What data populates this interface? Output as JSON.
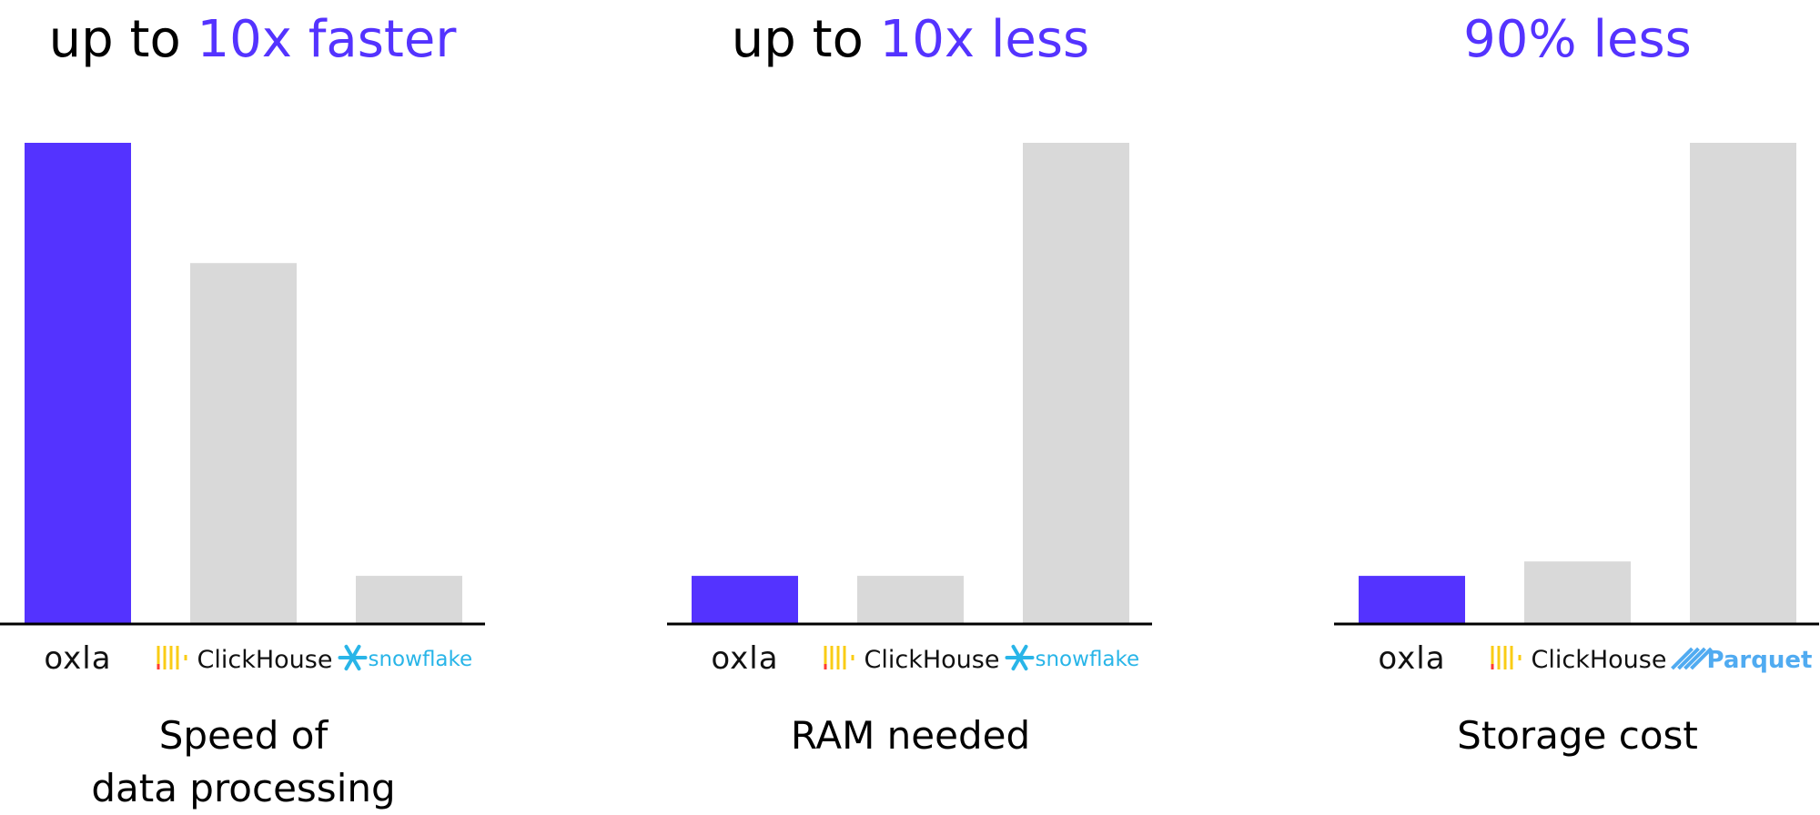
{
  "colors": {
    "accent": "#5433FF",
    "bar_gray": "#D9D9D9",
    "axis": "#000000",
    "clickhouse_yellow": "#FACC15",
    "clickhouse_red": "#FF3B30",
    "snowflake_blue": "#29B5E8",
    "parquet_blue": "#50ABF1"
  },
  "chart_data": [
    {
      "type": "bar",
      "title_prefix": "up to ",
      "title_highlight": "10x faster",
      "xlabel": "Speed of\ndata processing",
      "categories": [
        "oxla",
        "ClickHouse",
        "snowflake"
      ],
      "values": [
        100,
        75,
        10
      ],
      "ylim": [
        0,
        100
      ],
      "highlight_index": 0
    },
    {
      "type": "bar",
      "title_prefix": "up to ",
      "title_highlight": "10x less",
      "xlabel": "RAM needed",
      "categories": [
        "oxla",
        "ClickHouse",
        "snowflake"
      ],
      "values": [
        10,
        10,
        100
      ],
      "ylim": [
        0,
        100
      ],
      "highlight_index": 0
    },
    {
      "type": "bar",
      "title_prefix": "",
      "title_highlight": "90% less",
      "xlabel": "Storage cost",
      "categories": [
        "oxla",
        "ClickHouse",
        "Parquet"
      ],
      "values": [
        10,
        13,
        100
      ],
      "ylim": [
        0,
        100
      ],
      "highlight_index": 0
    }
  ]
}
